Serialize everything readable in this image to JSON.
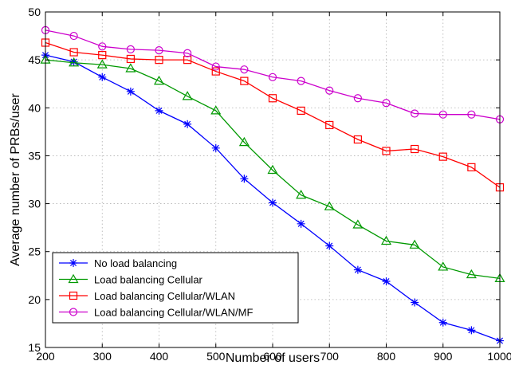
{
  "chart_data": {
    "type": "line",
    "title": "",
    "xlabel": "Number of users",
    "ylabel": "Average number of PRBs/user",
    "xlim": [
      200,
      1000
    ],
    "ylim": [
      15,
      50
    ],
    "xticks": [
      200,
      300,
      400,
      500,
      600,
      700,
      800,
      900,
      1000
    ],
    "yticks": [
      15,
      20,
      25,
      30,
      35,
      40,
      45,
      50
    ],
    "grid": true,
    "legend_position": "bottom-left",
    "x": [
      200,
      250,
      300,
      350,
      400,
      450,
      500,
      550,
      600,
      650,
      700,
      750,
      800,
      850,
      900,
      950,
      1000
    ],
    "series": [
      {
        "name": "No load balancing",
        "color": "#0000ff",
        "marker": "star",
        "values": [
          45.5,
          44.8,
          43.2,
          41.7,
          39.7,
          38.3,
          35.8,
          32.6,
          30.1,
          27.9,
          25.6,
          23.1,
          21.9,
          19.7,
          17.6,
          16.8,
          15.7
        ]
      },
      {
        "name": "Load balancing Cellular",
        "color": "#009900",
        "marker": "triangle",
        "values": [
          45.0,
          44.7,
          44.5,
          44.1,
          42.8,
          41.2,
          39.7,
          36.4,
          33.5,
          30.9,
          29.7,
          27.8,
          26.1,
          25.7,
          23.4,
          22.6,
          22.2
        ]
      },
      {
        "name": "Load balancing Cellular/WLAN",
        "color": "#ff0000",
        "marker": "square",
        "values": [
          46.8,
          45.8,
          45.5,
          45.1,
          45.0,
          45.0,
          43.8,
          42.8,
          41.0,
          39.7,
          38.2,
          36.7,
          35.5,
          35.7,
          34.9,
          33.8,
          31.7
        ]
      },
      {
        "name": "Load balancing Cellular/WLAN/MF",
        "color": "#cc00cc",
        "marker": "circle",
        "values": [
          48.1,
          47.5,
          46.4,
          46.1,
          46.0,
          45.7,
          44.3,
          44.0,
          43.2,
          42.8,
          41.8,
          41.0,
          40.5,
          39.4,
          39.3,
          39.3,
          38.8
        ]
      }
    ]
  }
}
